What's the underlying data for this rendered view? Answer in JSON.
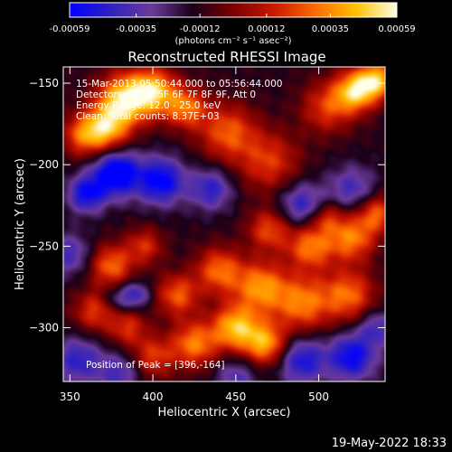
{
  "chart_data": {
    "type": "heatmap",
    "title": "Reconstructed RHESSI Image",
    "xlabel": "Heliocentric X (arcsec)",
    "ylabel": "Heliocentric Y (arcsec)",
    "xlim": [
      346,
      540
    ],
    "ylim": [
      -333,
      -140
    ],
    "x_ticks": [
      350,
      400,
      450,
      500
    ],
    "y_ticks": [
      -150,
      -200,
      -250,
      -300
    ],
    "colorbar": {
      "min": -0.00059,
      "max": 0.00059,
      "tick_values": [
        -0.00059,
        -0.00035,
        -0.00012,
        0.00012,
        0.00035,
        0.00059
      ],
      "tick_labels": [
        "-0.00059",
        "-0.00035",
        "-0.00012",
        "0.00012",
        "0.00035",
        "0.00059"
      ],
      "unit_label": "(photons cm⁻² s⁻¹ asec⁻²)",
      "colormap": [
        "#0000ff",
        "#3020c0",
        "#6a3a9a",
        "#1a001a",
        "#7a0000",
        "#cc1800",
        "#ff6a00",
        "#ffc000",
        "#ffffe8"
      ]
    },
    "annotations": [
      "15-Mar-2013 05:50:44.000 to 05:56:44.000",
      "Detectors: 3F 4F 5F 6F 7F 8F 9F, Att 0",
      "Energy Range: 12.0 - 25.0 keV",
      "Clean: Total counts: 8.37E+03"
    ],
    "peak_label": "Position of Peak = [396,-164]",
    "peak_position": [
      396,
      -164
    ],
    "features": [
      {
        "x": 382,
        "y": -160,
        "v": 1.0,
        "s": 11
      },
      {
        "x": 400,
        "y": -155,
        "v": 0.95,
        "s": 10
      },
      {
        "x": 372,
        "y": -178,
        "v": 0.85,
        "s": 10
      },
      {
        "x": 420,
        "y": -165,
        "v": 0.7,
        "s": 9
      },
      {
        "x": 358,
        "y": -182,
        "v": 0.6,
        "s": 9
      },
      {
        "x": 445,
        "y": -180,
        "v": 0.65,
        "s": 12
      },
      {
        "x": 470,
        "y": -198,
        "v": 0.55,
        "s": 13
      },
      {
        "x": 505,
        "y": -165,
        "v": 0.55,
        "s": 11
      },
      {
        "x": 522,
        "y": -155,
        "v": 0.95,
        "s": 9
      },
      {
        "x": 535,
        "y": -148,
        "v": 0.9,
        "s": 8
      },
      {
        "x": 378,
        "y": -205,
        "v": -0.95,
        "s": 10
      },
      {
        "x": 405,
        "y": -210,
        "v": -0.8,
        "s": 10
      },
      {
        "x": 360,
        "y": -218,
        "v": -0.7,
        "s": 8
      },
      {
        "x": 435,
        "y": -215,
        "v": -0.55,
        "s": 9
      },
      {
        "x": 490,
        "y": -225,
        "v": -0.55,
        "s": 10
      },
      {
        "x": 520,
        "y": -215,
        "v": -0.45,
        "s": 10
      },
      {
        "x": 505,
        "y": -232,
        "v": 0.45,
        "s": 7
      },
      {
        "x": 470,
        "y": -240,
        "v": 0.6,
        "s": 9
      },
      {
        "x": 495,
        "y": -250,
        "v": 0.75,
        "s": 10
      },
      {
        "x": 520,
        "y": -245,
        "v": 0.75,
        "s": 10
      },
      {
        "x": 535,
        "y": -230,
        "v": 0.65,
        "s": 8
      },
      {
        "x": 440,
        "y": -265,
        "v": 0.7,
        "s": 10
      },
      {
        "x": 465,
        "y": -275,
        "v": 0.8,
        "s": 11
      },
      {
        "x": 490,
        "y": -285,
        "v": 0.75,
        "s": 12
      },
      {
        "x": 518,
        "y": -280,
        "v": 0.7,
        "s": 11
      },
      {
        "x": 375,
        "y": -262,
        "v": 0.7,
        "s": 9
      },
      {
        "x": 395,
        "y": -250,
        "v": 0.5,
        "s": 8
      },
      {
        "x": 365,
        "y": -290,
        "v": 0.55,
        "s": 9
      },
      {
        "x": 385,
        "y": -300,
        "v": 0.5,
        "s": 8
      },
      {
        "x": 415,
        "y": -280,
        "v": 0.65,
        "s": 9
      },
      {
        "x": 425,
        "y": -310,
        "v": 0.75,
        "s": 10
      },
      {
        "x": 450,
        "y": -300,
        "v": 0.95,
        "s": 10
      },
      {
        "x": 468,
        "y": -310,
        "v": 0.85,
        "s": 9
      },
      {
        "x": 400,
        "y": -318,
        "v": 0.55,
        "s": 9
      },
      {
        "x": 378,
        "y": -282,
        "v": -0.35,
        "s": 6
      },
      {
        "x": 390,
        "y": -280,
        "v": -0.5,
        "s": 6
      },
      {
        "x": 350,
        "y": -255,
        "v": -0.45,
        "s": 9
      },
      {
        "x": 355,
        "y": -320,
        "v": -0.55,
        "s": 10
      },
      {
        "x": 380,
        "y": -328,
        "v": -0.45,
        "s": 9
      },
      {
        "x": 490,
        "y": -320,
        "v": -0.65,
        "s": 10
      },
      {
        "x": 520,
        "y": -318,
        "v": -0.75,
        "s": 10
      },
      {
        "x": 535,
        "y": -300,
        "v": -0.45,
        "s": 8
      },
      {
        "x": 450,
        "y": -330,
        "v": -0.4,
        "s": 9
      }
    ]
  },
  "footer_date": "19-May-2022 18:33"
}
